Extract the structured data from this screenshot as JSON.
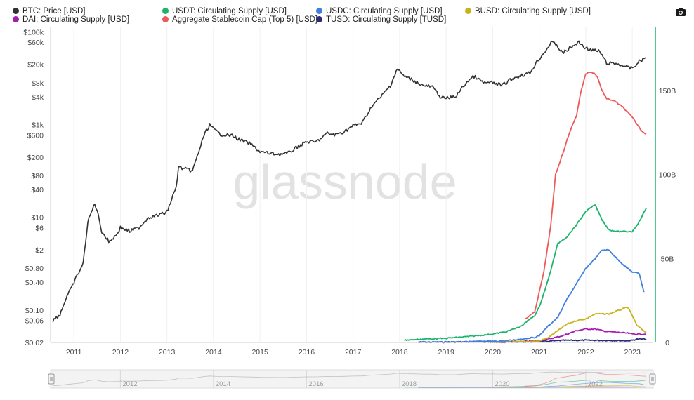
{
  "legend": [
    {
      "label": "BTC: Price [USD]",
      "color": "#333333"
    },
    {
      "label": "USDT: Circulating Supply [USD]",
      "color": "#1bb46a"
    },
    {
      "label": "USDC: Circulating Supply [USD]",
      "color": "#3f7fe0"
    },
    {
      "label": "BUSD: Circulating Supply [USD]",
      "color": "#c9b31a"
    },
    {
      "label": "DAI: Circulating Supply [USD]",
      "color": "#a41bb0"
    },
    {
      "label": "Aggregate Stablecoin Cap (Top 5) [USD]",
      "color": "#ee5a5a"
    },
    {
      "label": "TUSD: Circulating Supply [TUSD]",
      "color": "#2a2a78"
    }
  ],
  "watermark": "glassnode",
  "toolbar": {
    "camera_icon": "camera-icon"
  },
  "chart_data": {
    "type": "line",
    "x_axis": {
      "label": "",
      "range": [
        2010.5,
        2023.45
      ],
      "tick_labels": [
        "2011",
        "2012",
        "2013",
        "2014",
        "2015",
        "2016",
        "2017",
        "2018",
        "2019",
        "2020",
        "2021",
        "2022",
        "2023"
      ]
    },
    "y_axis_left": {
      "scale": "log",
      "range": [
        0.02,
        130000
      ],
      "tick_labels": [
        "$100k",
        "$60k",
        "$20k",
        "$8k",
        "$4k",
        "$1k",
        "$600",
        "$200",
        "$80",
        "$40",
        "$10",
        "$6",
        "$2",
        "$0.80",
        "$0.40",
        "$0.10",
        "$0.06",
        "$0.02"
      ],
      "tick_values": [
        100000,
        60000,
        20000,
        8000,
        4000,
        1000,
        600,
        200,
        80,
        40,
        10,
        6,
        2,
        0.8,
        0.4,
        0.1,
        0.06,
        0.02
      ]
    },
    "y_axis_right": {
      "scale": "linear",
      "range": [
        0,
        188000000000
      ],
      "tick_labels": [
        "150B",
        "100B",
        "50B",
        "0"
      ],
      "tick_values": [
        150000000000,
        100000000000,
        50000000000,
        0
      ]
    },
    "series": [
      {
        "name": "BTC: Price [USD]",
        "axis": "left",
        "color": "#333333",
        "x": [
          2010.55,
          2010.7,
          2010.85,
          2010.95,
          2011.05,
          2011.2,
          2011.3,
          2011.45,
          2011.5,
          2011.6,
          2011.75,
          2011.9,
          2012.0,
          2012.2,
          2012.4,
          2012.6,
          2012.8,
          2013.0,
          2013.2,
          2013.25,
          2013.4,
          2013.55,
          2013.8,
          2013.92,
          2014.0,
          2014.15,
          2014.4,
          2014.55,
          2014.8,
          2015.0,
          2015.2,
          2015.4,
          2015.6,
          2015.8,
          2016.0,
          2016.2,
          2016.45,
          2016.6,
          2016.8,
          2017.0,
          2017.2,
          2017.4,
          2017.6,
          2017.8,
          2017.95,
          2018.1,
          2018.3,
          2018.5,
          2018.7,
          2018.9,
          2019.0,
          2019.2,
          2019.45,
          2019.6,
          2019.8,
          2020.0,
          2020.2,
          2020.4,
          2020.6,
          2020.8,
          2020.95,
          2021.1,
          2021.25,
          2021.35,
          2021.5,
          2021.65,
          2021.85,
          2022.0,
          2022.15,
          2022.3,
          2022.45,
          2022.6,
          2022.8,
          2022.9,
          2023.0,
          2023.15,
          2023.3
        ],
        "values": [
          0.06,
          0.08,
          0.2,
          0.3,
          0.5,
          1.0,
          8,
          20,
          14,
          5,
          3,
          4,
          6,
          5,
          6,
          10,
          11,
          13,
          45,
          120,
          110,
          100,
          600,
          1000,
          800,
          620,
          580,
          480,
          380,
          260,
          240,
          230,
          240,
          330,
          430,
          420,
          650,
          600,
          700,
          950,
          1100,
          2500,
          4000,
          7000,
          16000,
          11000,
          9000,
          7000,
          6500,
          3800,
          3700,
          4000,
          8500,
          11000,
          8000,
          8000,
          7000,
          9500,
          11500,
          13000,
          23000,
          35000,
          58000,
          56000,
          35000,
          44000,
          60000,
          45000,
          40000,
          38000,
          21000,
          21000,
          19000,
          17000,
          16500,
          23000,
          28000
        ]
      },
      {
        "name": "USDT: Circulating Supply [USD]",
        "axis": "right",
        "color": "#1bb46a",
        "x": [
          2018.1,
          2018.5,
          2019.0,
          2019.5,
          2020.0,
          2020.3,
          2020.6,
          2020.9,
          2021.0,
          2021.2,
          2021.4,
          2021.6,
          2021.8,
          2022.0,
          2022.2,
          2022.35,
          2022.5,
          2022.7,
          2022.9,
          2023.0,
          2023.15,
          2023.3
        ],
        "values": [
          1400000000.0,
          2000000000.0,
          2500000000.0,
          3600000000.0,
          5000000000.0,
          6500000000.0,
          9500000000.0,
          16000000000.0,
          21000000000.0,
          38000000000.0,
          59000000000.0,
          63000000000.0,
          70000000000.0,
          78000000000.0,
          82000000000.0,
          73000000000.0,
          67000000000.0,
          66000000000.0,
          66000000000.0,
          66000000000.0,
          72000000000.0,
          80000000000.0
        ]
      },
      {
        "name": "USDC: Circulating Supply [USD]",
        "axis": "right",
        "color": "#3f7fe0",
        "x": [
          2018.4,
          2019.0,
          2019.5,
          2020.0,
          2020.3,
          2020.6,
          2020.9,
          2021.0,
          2021.2,
          2021.4,
          2021.6,
          2021.8,
          2022.0,
          2022.2,
          2022.35,
          2022.5,
          2022.7,
          2022.9,
          2023.0,
          2023.15,
          2023.25
        ],
        "values": [
          200000000.0,
          300000000.0,
          500000000.0,
          700000000.0,
          1000000000.0,
          2000000000.0,
          3000000000.0,
          4000000000.0,
          10000000000.0,
          15000000000.0,
          26000000000.0,
          35000000000.0,
          44000000000.0,
          50000000000.0,
          55000000000.0,
          55000000000.0,
          49000000000.0,
          44000000000.0,
          42000000000.0,
          41000000000.0,
          30000000000.0
        ]
      },
      {
        "name": "BUSD: Circulating Supply [USD]",
        "axis": "right",
        "color": "#c9b31a",
        "x": [
          2019.9,
          2020.3,
          2020.7,
          2021.0,
          2021.2,
          2021.4,
          2021.6,
          2021.8,
          2022.0,
          2022.2,
          2022.5,
          2022.8,
          2022.9,
          2023.0,
          2023.1,
          2023.3
        ],
        "values": [
          100000000.0,
          200000000.0,
          500000000.0,
          800000000.0,
          3000000000.0,
          7000000000.0,
          11000000000.0,
          13000000000.0,
          14000000000.0,
          17000000000.0,
          17000000000.0,
          20000000000.0,
          21000000000.0,
          16000000000.0,
          10000000000.0,
          6000000000.0
        ]
      },
      {
        "name": "DAI: Circulating Supply [USD]",
        "axis": "right",
        "color": "#a41bb0",
        "x": [
          2019.9,
          2020.3,
          2020.7,
          2021.0,
          2021.2,
          2021.5,
          2021.8,
          2022.0,
          2022.2,
          2022.45,
          2022.7,
          2022.9,
          2023.0,
          2023.3
        ],
        "values": [
          100000000.0,
          150000000.0,
          600000000.0,
          1200000000.0,
          2000000000.0,
          4000000000.0,
          7000000000.0,
          8000000000.0,
          8000000000.0,
          6500000000.0,
          6000000000.0,
          5500000000.0,
          5000000000.0,
          5000000000.0
        ]
      },
      {
        "name": "Aggregate Stablecoin Cap (Top 5) [USD]",
        "axis": "right",
        "color": "#ee5a5a",
        "x": [
          2020.7,
          2020.9,
          2021.0,
          2021.1,
          2021.25,
          2021.35,
          2021.5,
          2021.65,
          2021.8,
          2021.9,
          2022.0,
          2022.1,
          2022.2,
          2022.25,
          2022.35,
          2022.45,
          2022.6,
          2022.8,
          2022.9,
          2023.0,
          2023.1,
          2023.2,
          2023.3
        ],
        "values": [
          14000000000.0,
          18000000000.0,
          30000000000.0,
          42000000000.0,
          70000000000.0,
          100000000000.0,
          112000000000.0,
          125000000000.0,
          135000000000.0,
          150000000000.0,
          160000000000.0,
          161000000000.0,
          160000000000.0,
          158000000000.0,
          150000000000.0,
          145000000000.0,
          144000000000.0,
          140000000000.0,
          137000000000.0,
          134000000000.0,
          130000000000.0,
          126000000000.0,
          124000000000.0
        ]
      },
      {
        "name": "TUSD: Circulating Supply [TUSD]",
        "axis": "right",
        "color": "#2a2a78",
        "x": [
          2018.4,
          2019.0,
          2019.5,
          2020.0,
          2020.5,
          2021.0,
          2021.5,
          2022.0,
          2022.5,
          2022.9,
          2023.0,
          2023.1,
          2023.3
        ],
        "values": [
          100000000.0,
          200000000.0,
          300000000.0,
          200000000.0,
          300000000.0,
          400000000.0,
          1200000000.0,
          1300000000.0,
          1200000000.0,
          1000000000.0,
          1300000000.0,
          2000000000.0,
          2000000000.0
        ]
      }
    ]
  },
  "navigator": {
    "tick_labels": [
      "2012",
      "2014",
      "2016",
      "2018",
      "2020",
      "2022"
    ],
    "handle_left": "left-range-handle",
    "handle_right": "right-range-handle"
  }
}
